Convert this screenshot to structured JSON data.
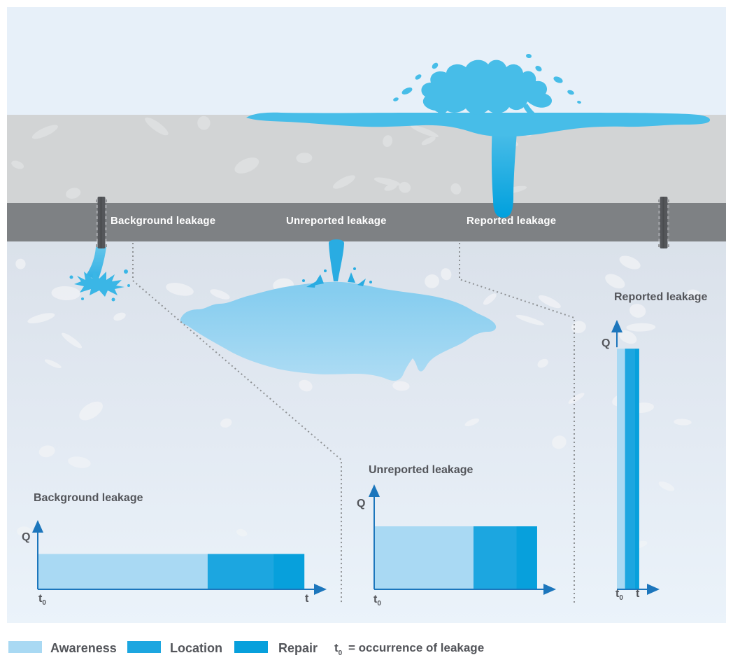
{
  "palette": {
    "awareness": "#A9D9F3",
    "location": "#1CA6E0",
    "repair": "#07A0DC",
    "axis": "#1C76BC",
    "text": "#53555A",
    "pipe_label_text": "#FFFFFF",
    "surface_water": "#47BDE8",
    "jet_water": "#29ACE2",
    "pool_water_top": "#86CDEF",
    "pool_water_bottom": "#AEDCF4"
  },
  "scene": {
    "pipe_labels": [
      "Background leakage",
      "Unreported leakage",
      "Reported leakage"
    ]
  },
  "labels": {
    "t0_base": "t",
    "t0_sub": "0"
  },
  "chart_data": [
    {
      "type": "area",
      "title": "Background leakage",
      "xlabel": "t",
      "ylabel": "Q",
      "x_origin_label": "t0",
      "flow_level_frac_of_y_axis": 0.51,
      "phases": [
        {
          "key": "awareness",
          "name": "Awareness",
          "duration_frac_of_x_axis": 0.588
        },
        {
          "key": "location",
          "name": "Location",
          "duration_frac_of_x_axis": 0.226
        },
        {
          "key": "repair",
          "name": "Repair",
          "duration_frac_of_x_axis": 0.109
        }
      ]
    },
    {
      "type": "area",
      "title": "Unreported leakage",
      "xlabel": "",
      "ylabel": "Q",
      "x_origin_label": "t0",
      "flow_level_frac_of_y_axis": 0.6,
      "phases": [
        {
          "key": "awareness",
          "name": "Awareness",
          "duration_frac_of_x_axis": 0.546
        },
        {
          "key": "location",
          "name": "Location",
          "duration_frac_of_x_axis": 0.235
        },
        {
          "key": "repair",
          "name": "Repair",
          "duration_frac_of_x_axis": 0.115
        }
      ]
    },
    {
      "type": "area",
      "title": "Reported leakage",
      "xlabel": "t",
      "ylabel": "Q",
      "x_origin_label": "t0",
      "flow_level_frac_of_y_axis": 0.893,
      "phases": [
        {
          "key": "awareness",
          "name": "Awareness",
          "duration_frac_of_x_axis": 0.19
        },
        {
          "key": "location",
          "name": "Location",
          "duration_frac_of_x_axis": 0.222
        },
        {
          "key": "repair",
          "name": "Repair",
          "duration_frac_of_x_axis": 0.111
        }
      ]
    }
  ],
  "legend": {
    "items": [
      {
        "key": "awareness",
        "label": "Awareness"
      },
      {
        "key": "location",
        "label": "Location"
      },
      {
        "key": "repair",
        "label": "Repair"
      }
    ],
    "note_base": "t",
    "note_sub": "0",
    "note_rest": "= occurrence of leakage"
  }
}
